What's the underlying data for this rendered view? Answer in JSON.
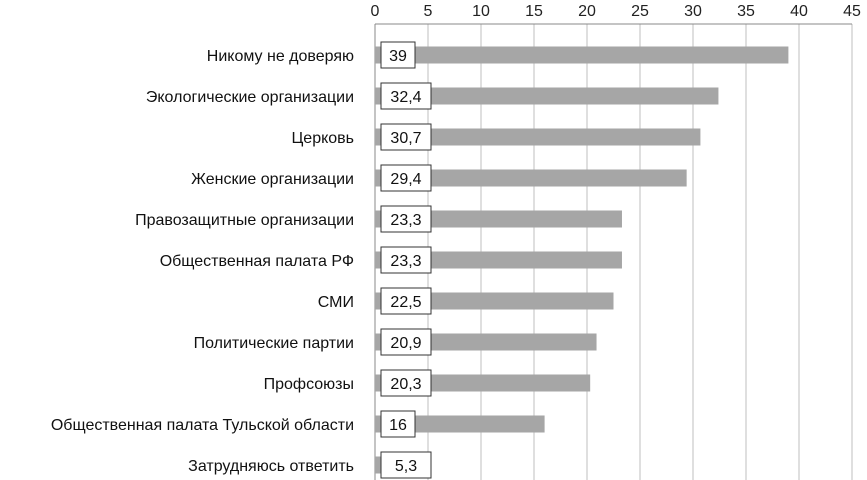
{
  "chart_data": {
    "type": "bar",
    "orientation": "horizontal",
    "categories": [
      "Никому не доверяю",
      "Экологические организации",
      "Церковь",
      "Женские организации",
      "Правозащитные организации",
      "Общественная палата РФ",
      "СМИ",
      "Политические партии",
      "Профсоюзы",
      "Общественная палата Тульской области",
      "Затрудняюсь ответить"
    ],
    "values": [
      39,
      32.4,
      30.7,
      29.4,
      23.3,
      23.3,
      22.5,
      20.9,
      20.3,
      16,
      5.3
    ],
    "data_labels": [
      "39",
      "32,4",
      "30,7",
      "29,4",
      "23,3",
      "23,3",
      "22,5",
      "20,9",
      "20,3",
      "16",
      "5,3"
    ],
    "xlim": [
      0,
      45
    ],
    "x_ticks": [
      "0",
      "5",
      "10",
      "15",
      "20",
      "25",
      "30",
      "35",
      "40",
      "45"
    ],
    "x_axis_position": "top",
    "grid": true,
    "colors": {
      "bar": "#a6a6a6",
      "grid": "#bfbfbf",
      "axis": "#888888"
    }
  }
}
